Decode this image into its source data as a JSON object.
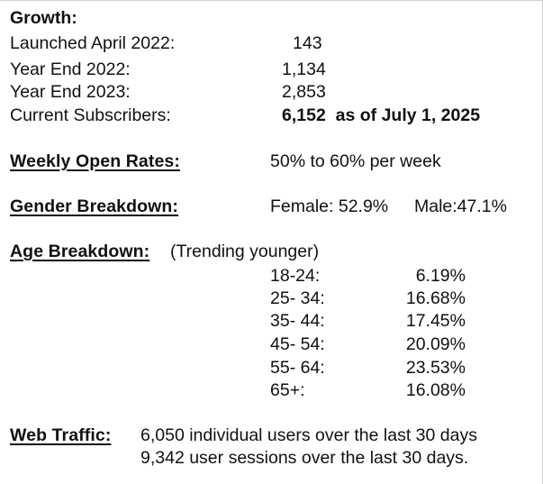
{
  "growth": {
    "heading": "Growth:",
    "rows": [
      {
        "label": "Launched April 2022:",
        "value": "143"
      },
      {
        "label": "Year End 2022:",
        "value": "1,134"
      },
      {
        "label": "Year End 2023:",
        "value": "2,853"
      },
      {
        "label": "Current Subscribers:",
        "value": "6,152  as of July 1, 2025"
      }
    ]
  },
  "open_rates": {
    "heading": "Weekly Open Rates:",
    "value": "50% to 60% per week"
  },
  "gender": {
    "heading": "Gender Breakdown:",
    "female": "Female: 52.9%",
    "male": "Male:47.1%"
  },
  "age": {
    "heading": "Age Breakdown:",
    "note": "(Trending younger)",
    "rows": [
      {
        "range": "18-24:",
        "pct": "6.19%"
      },
      {
        "range": "25- 34:",
        "pct": "16.68%"
      },
      {
        "range": "35- 44:",
        "pct": "17.45%"
      },
      {
        "range": "45- 54:",
        "pct": "20.09%"
      },
      {
        "range": "55- 64:",
        "pct": "23.53%"
      },
      {
        "range": "65+:",
        "pct": "16.08%"
      }
    ]
  },
  "web_traffic": {
    "heading": "Web Traffic:",
    "lines": [
      "6,050 individual users over the last 30 days",
      "9,342 user sessions over the last 30 days."
    ]
  }
}
